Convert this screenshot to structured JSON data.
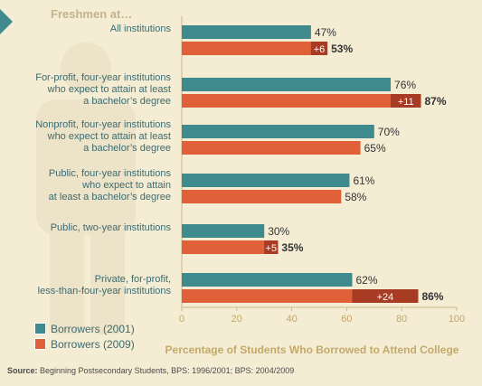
{
  "heading": "Freshmen at…",
  "chart_data": {
    "type": "bar",
    "categories": [
      "All institutions",
      "For-profit, four-year institutions\nwho expect to attain at least\na bachelor’s degree",
      "Nonprofit, four-year institutions\nwho expect to attain at least\na bachelor’s degree",
      "Public, four-year institutions\nwho expect to attain\nat least a bachelor’s degree",
      "Public, two-year institutions",
      "Private, for-profit,\nless-than-four-year institutions"
    ],
    "series": [
      {
        "name": "Borrowers (2001)",
        "color": "#3f8a8c",
        "values": [
          47,
          76,
          70,
          61,
          30,
          62
        ]
      },
      {
        "name": "Borrowers (2009)",
        "color": "#e0603a",
        "values": [
          53,
          87,
          65,
          58,
          35,
          86
        ]
      }
    ],
    "value_labels_2001": [
      "47%",
      "76%",
      "70%",
      "61%",
      "30%",
      "62%"
    ],
    "value_labels_2009": [
      "53%",
      "87%",
      "65%",
      "58%",
      "35%",
      "86%"
    ],
    "increase_labels": [
      "+6",
      "+11",
      "",
      "",
      "+5",
      "+24"
    ],
    "xlabel": "Percentage of Students Who Borrowed to Attend College",
    "xlim": [
      0,
      100
    ],
    "xticks": [
      0,
      20,
      40,
      60,
      80,
      100
    ],
    "increase_color": "#a83b23",
    "grid": false,
    "legend_position": "bottom-left"
  },
  "source": {
    "label": "Source:",
    "text": " Beginning Postsecondary Students, BPS: 1996/2001; BPS: 2004/2009"
  }
}
